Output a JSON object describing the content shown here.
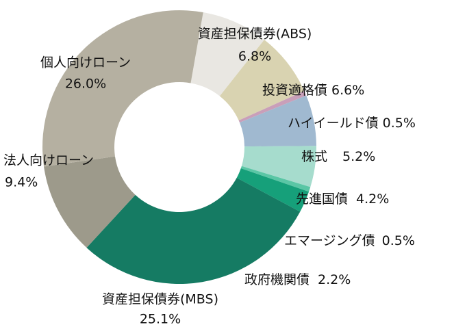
{
  "chart_data": {
    "type": "donut",
    "categories": [
      "資産担保債券(ABS)",
      "投資適格債",
      "ハイイールド債",
      "株式",
      "先進国債",
      "エマージング債",
      "政府機関債",
      "資産担保債券(MBS)",
      "法人向けローン",
      "個人向けローン"
    ],
    "values": [
      6.8,
      6.6,
      0.5,
      5.2,
      4.2,
      0.5,
      2.2,
      25.1,
      9.4,
      26.0
    ],
    "value_labels": [
      "6.8%",
      "6.6%",
      "0.5%",
      "5.2%",
      "4.2%",
      "0.5%",
      "2.2%",
      "25.1%",
      "9.4%",
      "26.0%"
    ],
    "colors": [
      "#e9e7e2",
      "#d9d3b1",
      "#c99fb9",
      "#a0b9d0",
      "#a6dccd",
      "#5ac6a5",
      "#16a07a",
      "#157b63",
      "#9d9a8b",
      "#b5b0a1"
    ]
  }
}
